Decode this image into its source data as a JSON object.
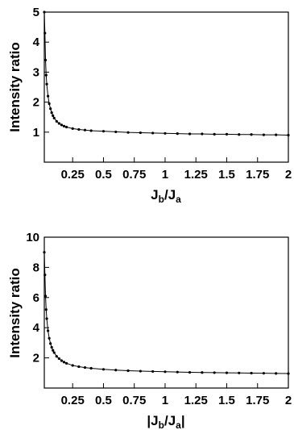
{
  "chart_data": [
    {
      "type": "line",
      "title": "",
      "ylabel": "Intensity ratio",
      "xlabel": {
        "open": "",
        "main": "J",
        "sub1": "b",
        "mid": "/J",
        "sub2": "a",
        "close": ""
      },
      "xlim": [
        0.02,
        2.0
      ],
      "ylim": [
        0,
        5
      ],
      "xticks": [
        0.25,
        0.5,
        0.75,
        1,
        1.25,
        1.5,
        1.75,
        2
      ],
      "xtick_labels": [
        "0.25",
        "0.5",
        "0.75",
        "1",
        "1.25",
        "1.5",
        "1.75",
        "2"
      ],
      "yticks": [
        1,
        2,
        3,
        4,
        5
      ],
      "ytick_labels": [
        "1",
        "2",
        "3",
        "4",
        "5"
      ],
      "grid": false,
      "series": [
        {
          "x": [
            0.02,
            0.025,
            0.03,
            0.035,
            0.04,
            0.05,
            0.06,
            0.07,
            0.08,
            0.09,
            0.1,
            0.12,
            0.14,
            0.16,
            0.18,
            0.2,
            0.25,
            0.3,
            0.35,
            0.4,
            0.5,
            0.6,
            0.7,
            0.8,
            0.9,
            1.0,
            1.1,
            1.2,
            1.3,
            1.4,
            1.5,
            1.6,
            1.7,
            1.8,
            1.9,
            2.0
          ],
          "y": [
            5.0,
            4.3,
            3.4,
            2.9,
            2.6,
            2.2,
            1.95,
            1.78,
            1.65,
            1.55,
            1.47,
            1.36,
            1.29,
            1.24,
            1.2,
            1.17,
            1.12,
            1.09,
            1.07,
            1.05,
            1.03,
            1.01,
            0.99,
            0.98,
            0.97,
            0.96,
            0.95,
            0.94,
            0.94,
            0.93,
            0.93,
            0.92,
            0.92,
            0.91,
            0.91,
            0.9
          ]
        }
      ]
    },
    {
      "type": "line",
      "title": "",
      "ylabel": "Intensity ratio",
      "xlabel": {
        "open": "|",
        "main": "J",
        "sub1": "b",
        "mid": "/J",
        "sub2": "a",
        "close": "|"
      },
      "xlim": [
        0.02,
        2.0
      ],
      "ylim": [
        0,
        10
      ],
      "xticks": [
        0.25,
        0.5,
        0.75,
        1,
        1.25,
        1.5,
        1.75,
        2
      ],
      "xtick_labels": [
        "0.25",
        "0.5",
        "0.75",
        "1",
        "1.25",
        "1.5",
        "1.75",
        "2"
      ],
      "yticks": [
        2,
        4,
        6,
        8,
        10
      ],
      "ytick_labels": [
        "2",
        "4",
        "6",
        "8",
        "10"
      ],
      "grid": false,
      "series": [
        {
          "x": [
            0.02,
            0.025,
            0.03,
            0.035,
            0.04,
            0.05,
            0.06,
            0.07,
            0.08,
            0.09,
            0.1,
            0.12,
            0.14,
            0.16,
            0.18,
            0.2,
            0.25,
            0.3,
            0.35,
            0.4,
            0.5,
            0.6,
            0.7,
            0.8,
            0.9,
            1.0,
            1.1,
            1.2,
            1.3,
            1.4,
            1.5,
            1.6,
            1.7,
            1.8,
            1.9,
            2.0
          ],
          "y": [
            9.0,
            7.5,
            6.1,
            5.2,
            4.6,
            3.8,
            3.3,
            2.95,
            2.7,
            2.5,
            2.35,
            2.1,
            1.95,
            1.82,
            1.72,
            1.64,
            1.5,
            1.42,
            1.36,
            1.31,
            1.24,
            1.19,
            1.15,
            1.12,
            1.1,
            1.08,
            1.06,
            1.04,
            1.03,
            1.02,
            1.01,
            1.0,
            0.99,
            0.98,
            0.97,
            0.96
          ]
        }
      ]
    }
  ]
}
